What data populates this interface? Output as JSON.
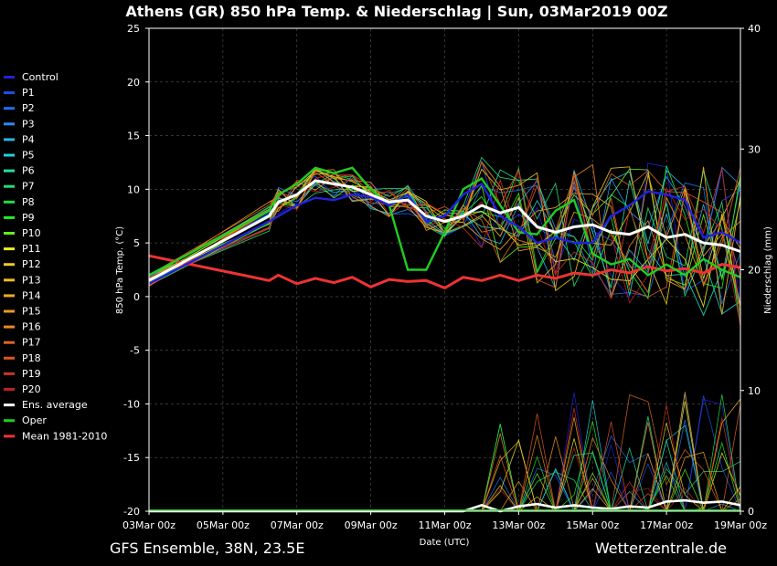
{
  "title": "Athens  (GR)  850 hPa Temp. & Niederschlag | Sun, 03Mar2019 00Z",
  "footer_left": "GFS Ensemble, 38N, 23.5E",
  "footer_right": "Wetterzentrale.de",
  "chart_data": {
    "type": "line",
    "xlabel": "Date (UTC)",
    "ylabel": "850 hPa Temp. (°C)",
    "y2label": "Niederschlag (mm)",
    "ylim": [
      -20,
      25
    ],
    "y2lim": [
      0,
      40
    ],
    "yticks": [
      25,
      20,
      15,
      10,
      5,
      0,
      -5,
      -10,
      -15,
      -20
    ],
    "y2ticks": [
      40,
      30,
      20,
      10,
      0
    ],
    "xticks": [
      "03Mar 00z",
      "05Mar 00z",
      "07Mar 00z",
      "09Mar 00z",
      "11Mar 00z",
      "13Mar 00z",
      "15Mar 00z",
      "17Mar 00z",
      "19Mar 00z"
    ],
    "x_days_range": [
      0,
      16
    ],
    "grid": true,
    "legend_position": "left",
    "legend": [
      {
        "name": "Control",
        "color": "#2222dd"
      },
      {
        "name": "P1",
        "color": "#1f4fe6"
      },
      {
        "name": "P2",
        "color": "#1f6ff0"
      },
      {
        "name": "P3",
        "color": "#2a8df0"
      },
      {
        "name": "P4",
        "color": "#2bb0e8"
      },
      {
        "name": "P5",
        "color": "#22d0d8"
      },
      {
        "name": "P6",
        "color": "#22e0a8"
      },
      {
        "name": "P7",
        "color": "#22dd70"
      },
      {
        "name": "P8",
        "color": "#22dd44"
      },
      {
        "name": "P9",
        "color": "#22ee22"
      },
      {
        "name": "P10",
        "color": "#66ee22"
      },
      {
        "name": "P11",
        "color": "#eeee22"
      },
      {
        "name": "P12",
        "color": "#eecc22"
      },
      {
        "name": "P13",
        "color": "#eebb22"
      },
      {
        "name": "P14",
        "color": "#eeaa22"
      },
      {
        "name": "P15",
        "color": "#ee9922"
      },
      {
        "name": "P16",
        "color": "#ee8822"
      },
      {
        "name": "P17",
        "color": "#dd6622"
      },
      {
        "name": "P18",
        "color": "#dd5522"
      },
      {
        "name": "P19",
        "color": "#cc3322"
      },
      {
        "name": "P20",
        "color": "#bb2222"
      },
      {
        "name": "Ens. average",
        "color": "#ffffff"
      },
      {
        "name": "Oper",
        "color": "#22cc22"
      },
      {
        "name": "Mean 1981-2010",
        "color": "#ee3333"
      }
    ],
    "ens_average": {
      "x": [
        0,
        3.25,
        3.5,
        4,
        4.5,
        5,
        5.5,
        6,
        6.5,
        7,
        7.5,
        8,
        8.5,
        9,
        9.5,
        10,
        10.5,
        11,
        11.5,
        12,
        12.5,
        13,
        13.5,
        14,
        14.5,
        15,
        15.5,
        16
      ],
      "y": [
        1.5,
        7.5,
        8.8,
        9.5,
        10.8,
        10.5,
        10.2,
        9.5,
        8.8,
        9.0,
        7.5,
        7.0,
        7.5,
        8.5,
        7.8,
        8.3,
        6.5,
        6.0,
        6.5,
        6.7,
        6.0,
        5.8,
        6.5,
        5.5,
        5.8,
        5.0,
        4.8,
        4.2
      ]
    },
    "oper": {
      "x": [
        0,
        3.25,
        3.5,
        4,
        4.5,
        5,
        5.5,
        6,
        6.5,
        7,
        7.5,
        8,
        8.5,
        9,
        9.5,
        10,
        10.5,
        11,
        11.5,
        12,
        12.5,
        13,
        13.5,
        14,
        14.5,
        15,
        15.5,
        16
      ],
      "y": [
        2.0,
        8.0,
        9.5,
        10.5,
        12.0,
        11.5,
        12.0,
        10.0,
        8.5,
        2.5,
        2.5,
        6.0,
        10.0,
        11.0,
        8.5,
        6.0,
        5.8,
        8.0,
        9.0,
        4.0,
        3.0,
        3.5,
        2.0,
        3.0,
        2.0,
        3.5,
        2.5,
        1.8
      ]
    },
    "control": {
      "x": [
        0,
        3.25,
        4,
        4.5,
        5,
        5.5,
        6,
        6.5,
        7,
        7.5,
        8,
        8.5,
        9,
        9.5,
        10,
        10.5,
        11,
        11.5,
        12,
        12.5,
        13,
        13.5,
        14,
        14.5,
        15,
        15.5,
        16
      ],
      "y": [
        1.2,
        7.0,
        8.5,
        9.2,
        9.0,
        9.5,
        9.3,
        8.5,
        9.5,
        7.0,
        7.5,
        9.5,
        10.5,
        7.5,
        6.5,
        5.0,
        5.5,
        5.0,
        5.0,
        7.5,
        8.5,
        9.8,
        9.5,
        9.0,
        5.5,
        6.0,
        5.0
      ]
    },
    "mean_1981_2010": {
      "x": [
        0,
        3.25,
        3.5,
        4,
        4.5,
        5,
        5.5,
        6,
        6.5,
        7,
        7.5,
        8,
        8.5,
        9,
        9.5,
        10,
        10.5,
        11,
        11.5,
        12,
        12.5,
        13,
        13.5,
        14,
        14.5,
        15,
        15.5,
        16
      ],
      "y": [
        3.8,
        1.5,
        2.0,
        1.2,
        1.7,
        1.3,
        1.8,
        0.9,
        1.6,
        1.4,
        1.5,
        0.8,
        1.8,
        1.5,
        2.0,
        1.5,
        2.0,
        1.7,
        2.2,
        2.0,
        2.5,
        2.2,
        2.8,
        2.4,
        2.6,
        2.2,
        3.0,
        2.7
      ]
    },
    "precip_average": {
      "x": [
        0,
        8.5,
        9,
        9.5,
        10,
        10.5,
        11,
        11.5,
        12,
        12.5,
        13,
        13.5,
        14,
        14.5,
        15,
        15.5,
        16
      ],
      "y": [
        0,
        0,
        0.5,
        0,
        0.4,
        0.6,
        0.3,
        0.5,
        0.3,
        0.2,
        0.4,
        0.3,
        0.8,
        0.9,
        0.7,
        0.8,
        0.5
      ]
    }
  }
}
